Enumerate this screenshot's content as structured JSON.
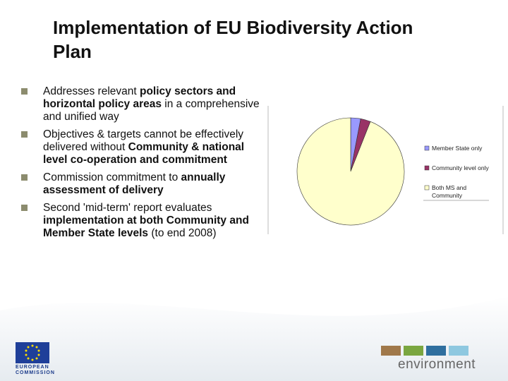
{
  "title": "Implementation of EU Biodiversity Action Plan",
  "bullets": [
    [
      {
        "text": "Addresses relevant ",
        "bold": false
      },
      {
        "text": "policy sectors and horizontal policy areas",
        "bold": true
      },
      {
        "text": " in a comprehensive and unified way",
        "bold": false
      }
    ],
    [
      {
        "text": "Objectives & targets cannot be effectively delivered without ",
        "bold": false
      },
      {
        "text": "Community & national level co-operation and commitment",
        "bold": true
      }
    ],
    [
      {
        "text": "Commission commitment to ",
        "bold": false
      },
      {
        "text": "annually assessment of delivery",
        "bold": true
      }
    ],
    [
      {
        "text": "Second 'mid-term' report evaluates ",
        "bold": false
      },
      {
        "text": "implementation at both Community and Member State levels",
        "bold": true
      },
      {
        "text": " (to end 2008)",
        "bold": false
      }
    ]
  ],
  "chart_data": {
    "type": "pie",
    "categories": [
      "Member State only",
      "Community level only",
      "Both MS and Community"
    ],
    "values": [
      3,
      3,
      94
    ],
    "colors": [
      "#9999ff",
      "#993366",
      "#ffffcc"
    ]
  },
  "footer": {
    "commission": "EUROPEAN COMMISSION",
    "environment": "environment"
  }
}
